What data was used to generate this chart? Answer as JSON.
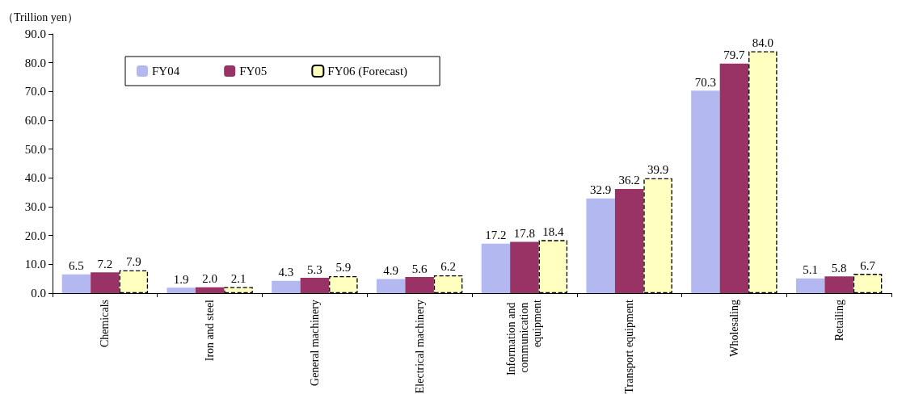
{
  "chart_data": {
    "type": "bar",
    "ylabel": "（Trillion yen）",
    "categories": [
      "Chemicals",
      "Iron and steel",
      "General machinery",
      "Electrical machinery",
      "Information and communication equipment",
      "Transport equipment",
      "Wholesaling",
      "Retailing"
    ],
    "series": [
      {
        "name": "FY04",
        "color": "#b3b8f0",
        "values": [
          6.5,
          1.9,
          4.3,
          4.9,
          17.2,
          32.9,
          70.3,
          5.1
        ],
        "value_labels": [
          "6.5",
          "1.9",
          "4.3",
          "4.9",
          "17.2",
          "32.9",
          "70.3",
          "5.1"
        ]
      },
      {
        "name": "FY05",
        "color": "#993366",
        "values": [
          7.2,
          2.0,
          5.3,
          5.6,
          17.8,
          36.2,
          79.7,
          5.8
        ],
        "value_labels": [
          "7.2",
          "2.0",
          "5.3",
          "5.6",
          "17.8",
          "36.2",
          "79.7",
          "5.8"
        ]
      },
      {
        "name": "FY06 (Forecast)",
        "color": "#ffffc0",
        "line_style": "dashed",
        "values": [
          7.9,
          2.1,
          5.9,
          6.2,
          18.4,
          39.9,
          84.0,
          6.7
        ],
        "value_labels": [
          "7.9",
          "2.1",
          "5.9",
          "6.2",
          "18.4",
          "39.9",
          "84.0",
          "6.7"
        ]
      }
    ],
    "ylim": [
      0,
      90
    ],
    "yticks": [
      {
        "value": 0,
        "label": "0.0"
      },
      {
        "value": 10,
        "label": "10.0"
      },
      {
        "value": 20,
        "label": "20.0"
      },
      {
        "value": 30,
        "label": "30.0"
      },
      {
        "value": 40,
        "label": "40.0"
      },
      {
        "value": 50,
        "label": "50.0"
      },
      {
        "value": 60,
        "label": "60.0"
      },
      {
        "value": 70,
        "label": "70.0"
      },
      {
        "value": 80,
        "label": "80.0"
      },
      {
        "value": 90,
        "label": "90.0"
      }
    ],
    "grid": false,
    "legend": "top left"
  }
}
